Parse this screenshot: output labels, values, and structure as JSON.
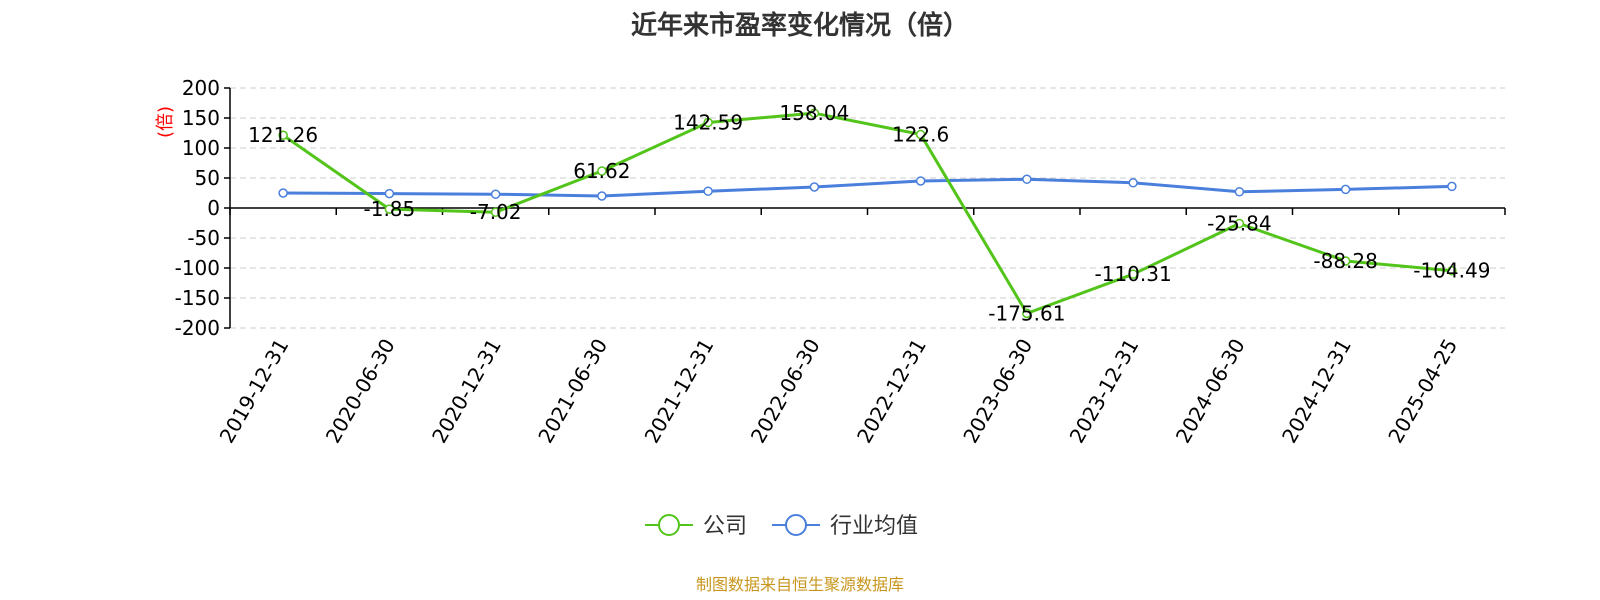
{
  "chart_data": {
    "type": "line",
    "title": "近年来市盈率变化情况（倍）",
    "ylabel": "(倍)",
    "ylim": [
      -200,
      200
    ],
    "yticks": [
      200,
      150,
      100,
      50,
      0,
      -50,
      -100,
      -150,
      -200
    ],
    "categories": [
      "2019-12-31",
      "2020-06-30",
      "2020-12-31",
      "2021-06-30",
      "2021-12-31",
      "2022-06-30",
      "2022-12-31",
      "2023-06-30",
      "2023-12-31",
      "2024-06-30",
      "2024-12-31",
      "2025-04-25"
    ],
    "series": [
      {
        "name": "公司",
        "color": "#52c41a",
        "values": [
          121.26,
          -1.85,
          -7.02,
          61.62,
          142.59,
          158.04,
          122.6,
          -175.61,
          -110.31,
          -25.84,
          -88.28,
          -104.49
        ],
        "labels": [
          "121.26",
          "-1.85",
          "-7.02",
          "61.62",
          "142.59",
          "158.04",
          "122.6",
          "-175.61",
          "-110.31",
          "-25.84",
          "-88.28",
          "-104.49"
        ]
      },
      {
        "name": "行业均值",
        "color": "#4a7fdc",
        "values": [
          25,
          24,
          23,
          20,
          28,
          35,
          45,
          48,
          42,
          27,
          31,
          36
        ]
      }
    ],
    "grid": true,
    "legend_position": "bottom-center"
  },
  "colors": {
    "ylabel": "#ff0000",
    "source": "#c8961e",
    "grid": "#cccccc",
    "axis": "#000000"
  },
  "source_text": "制图数据来自恒生聚源数据库"
}
